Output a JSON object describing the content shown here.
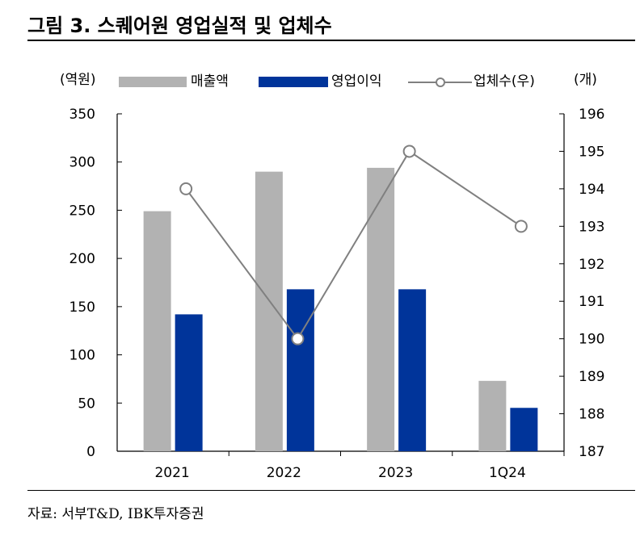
{
  "title": "그림 3. 스퀘어원 영업실적 및 업체수",
  "source": "자료: 서부T&D, IBK투자증권",
  "chart_data": {
    "type": "bar",
    "categories": [
      "2021",
      "2022",
      "2023",
      "1Q24"
    ],
    "series": [
      {
        "name": "매출액",
        "kind": "bar",
        "axis": "left",
        "color": "#b2b2b2",
        "values": [
          249,
          290,
          294,
          73
        ]
      },
      {
        "name": "영업이익",
        "kind": "bar",
        "axis": "left",
        "color": "#00349a",
        "values": [
          142,
          168,
          168,
          45
        ]
      },
      {
        "name": "업체수(우)",
        "kind": "line",
        "axis": "right",
        "color": "#808080",
        "values": [
          194,
          190,
          195,
          193
        ]
      }
    ],
    "left_axis": {
      "label": "(역원)",
      "min": 0,
      "max": 350,
      "ticks": [
        0,
        50,
        100,
        150,
        200,
        250,
        300,
        350
      ]
    },
    "right_axis": {
      "label": "(개)",
      "min": 187,
      "max": 196,
      "ticks": [
        187,
        188,
        189,
        190,
        191,
        192,
        193,
        194,
        195,
        196
      ]
    },
    "legend": {
      "position": "top"
    },
    "grid": false
  }
}
